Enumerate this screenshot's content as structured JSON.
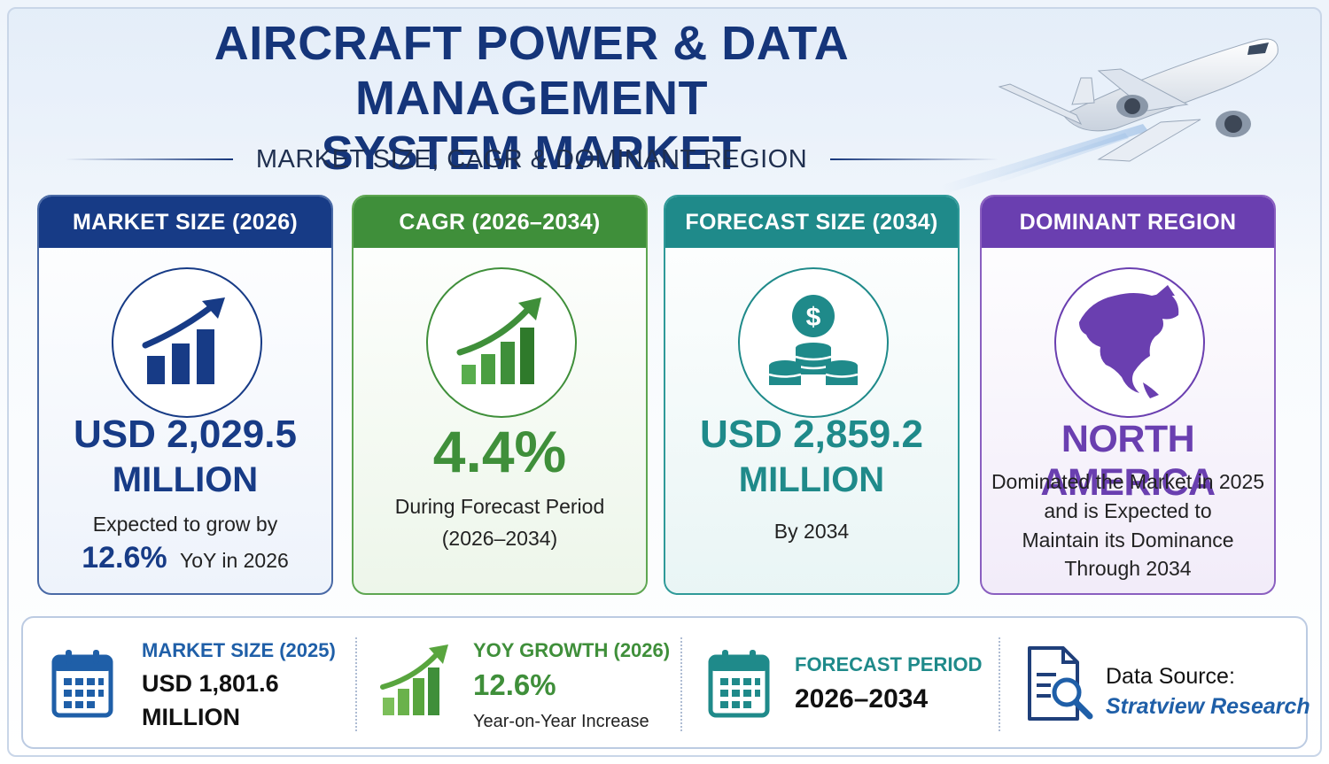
{
  "header": {
    "title_line1": "AIRCRAFT POWER & DATA MANAGEMENT",
    "title_line2": "SYSTEM MARKET",
    "subtitle": "MARKET SIZE, CAGR & DOMINANT REGION"
  },
  "colors": {
    "navy": "#173b86",
    "green": "#3f8f3a",
    "teal": "#1f8a8a",
    "purple": "#6a3fb0"
  },
  "cards": [
    {
      "header": "MARKET SIZE (2026)",
      "icon": "rising-bar-chart-icon",
      "value_line1": "USD 2,029.5",
      "value_line2": "MILLION",
      "note_line1": "Expected to grow by",
      "note_highlight": "12.6%",
      "note_suffix": "YoY in 2026"
    },
    {
      "header": "CAGR (2026–2034)",
      "icon": "growth-chart-icon",
      "value": "4.4%",
      "note_line1": "During Forecast Period",
      "note_line2": "(2026–2034)"
    },
    {
      "header": "FORECAST SIZE (2034)",
      "icon": "dollar-coins-icon",
      "value_line1": "USD 2,859.2",
      "value_line2": "MILLION",
      "note": "By 2034"
    },
    {
      "header": "DOMINANT REGION",
      "icon": "north-america-globe-icon",
      "value": "NORTH AMERICA",
      "note_lines": [
        "Dominated the Market in 2025",
        "and is Expected to",
        "Maintain its Dominance",
        "Through 2034"
      ]
    }
  ],
  "bottom": {
    "market_size": {
      "label": "MARKET SIZE (2025)",
      "value_line1": "USD 1,801.6",
      "value_line2": "MILLION",
      "icon": "calendar-icon"
    },
    "yoy": {
      "label": "YOY GROWTH (2026)",
      "value": "12.6%",
      "note": "Year-on-Year Increase",
      "icon": "growth-chart-icon"
    },
    "forecast": {
      "label": "FORECAST PERIOD",
      "value": "2026–2034",
      "icon": "calendar-icon"
    },
    "source": {
      "label": "Data Source:",
      "value": "Stratview Research",
      "icon": "document-search-icon"
    }
  }
}
